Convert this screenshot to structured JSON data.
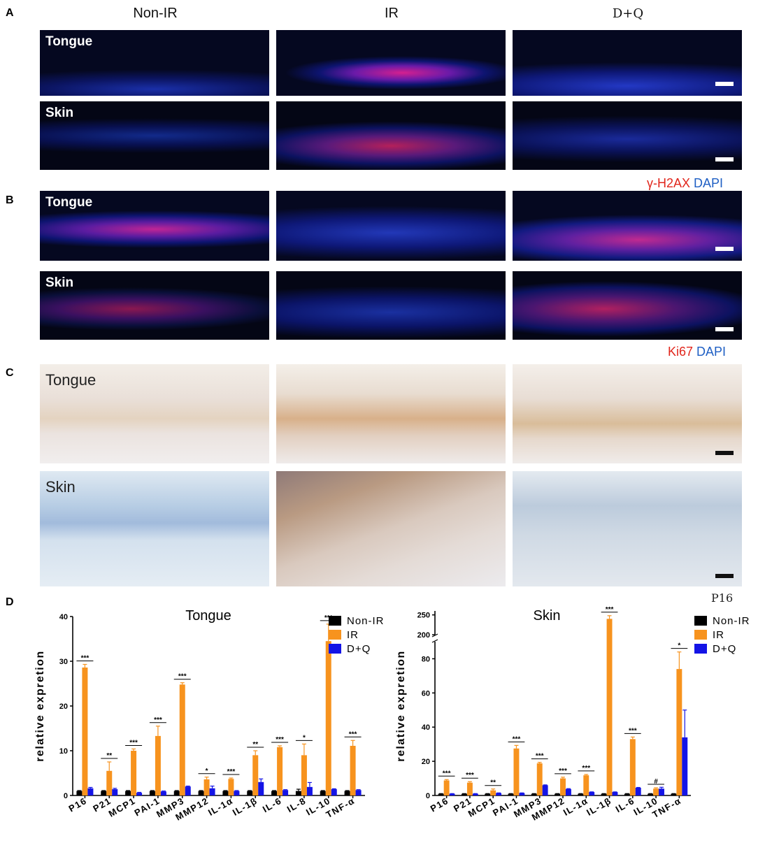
{
  "panels": {
    "a": "A",
    "b": "B",
    "c": "C",
    "d": "D"
  },
  "columns": [
    "Non-IR",
    "IR",
    "D+Q"
  ],
  "tissues": {
    "tongue": "Tongue",
    "skin": "Skin"
  },
  "legend_a": {
    "stain": "γ-H2AX",
    "dapi": "DAPI"
  },
  "legend_b": {
    "stain": "Ki67",
    "dapi": "DAPI"
  },
  "panel_c_corner_label": "P16",
  "colors": {
    "non_ir": "#000000",
    "ir": "#f7931e",
    "dq": "#1414e6",
    "fluor_bg": "#050820",
    "red_stain": "#e1261c",
    "dapi_blue": "#1f5fc4"
  },
  "chart_data": [
    {
      "type": "bar",
      "title": "Tongue",
      "ylabel": "relative expretion",
      "ylim": [
        0,
        40
      ],
      "yticks": [
        0,
        10,
        20,
        30,
        40
      ],
      "categories": [
        "P16",
        "P21",
        "MCP1",
        "PAI-1",
        "MMP3",
        "MMP12",
        "IL-1α",
        "IL-1β",
        "IL-6",
        "IL-8",
        "IL-10",
        "TNF-α"
      ],
      "series": [
        {
          "name": "Non-IR",
          "values": [
            1,
            1,
            1,
            1,
            1,
            1,
            1,
            1,
            1,
            1,
            1,
            1
          ],
          "errors": [
            0.1,
            0.1,
            0.1,
            0.1,
            0.1,
            0.1,
            0.1,
            0.1,
            0.1,
            0.4,
            0.1,
            0.1
          ]
        },
        {
          "name": "IR",
          "values": [
            28.6,
            5.5,
            10.0,
            13.3,
            24.8,
            3.6,
            3.7,
            9.0,
            10.8,
            9.0,
            34.5,
            11.1
          ],
          "errors": [
            0.7,
            2.0,
            0.4,
            2.2,
            0.4,
            0.5,
            0.2,
            1.0,
            0.3,
            2.5,
            3.8,
            1.2
          ]
        },
        {
          "name": "D+Q",
          "values": [
            1.6,
            1.4,
            0.6,
            0.9,
            2.0,
            1.6,
            1.0,
            3.0,
            1.2,
            1.9,
            1.4,
            1.2
          ],
          "errors": [
            0.2,
            0.2,
            0.1,
            0.1,
            0.1,
            0.5,
            0.1,
            0.7,
            0.1,
            1.0,
            0.1,
            0.1
          ]
        }
      ],
      "significance": [
        "***",
        "**",
        "***",
        "***",
        "***",
        "*",
        "***",
        "**",
        "***",
        "*",
        "***",
        "***"
      ],
      "legend": [
        "Non-IR",
        "IR",
        "D+Q"
      ],
      "legend_position": "top-right"
    },
    {
      "type": "bar",
      "title": "Skin",
      "ylabel": "relative expretion",
      "broken_axis": true,
      "ylim_lower": [
        0,
        90
      ],
      "ylim_upper": [
        200,
        260
      ],
      "yticks_lower": [
        0,
        20,
        40,
        60,
        80
      ],
      "yticks_upper": [
        200,
        250
      ],
      "categories": [
        "P16",
        "P21",
        "MCP1",
        "PAI-1",
        "MMP3",
        "MMP12",
        "IL-1α",
        "IL-1β",
        "IL-6",
        "IL-10",
        "TNF-α"
      ],
      "series": [
        {
          "name": "Non-IR",
          "values": [
            1,
            1,
            1,
            1,
            1,
            1,
            1,
            1,
            1,
            1,
            1
          ],
          "errors": [
            0.1,
            0.1,
            0.1,
            0.1,
            0.1,
            0.1,
            0.1,
            0.1,
            0.1,
            0.1,
            0.1
          ]
        },
        {
          "name": "IR",
          "values": [
            8.8,
            7.5,
            3.0,
            27.5,
            18.8,
            10.0,
            11.8,
            240,
            33.0,
            4.0,
            74.0
          ],
          "errors": [
            0.5,
            0.6,
            0.8,
            1.8,
            0.6,
            0.7,
            0.5,
            8.0,
            1.2,
            0.5,
            10.0
          ]
        },
        {
          "name": "D+Q",
          "values": [
            1.0,
            1.0,
            1.4,
            1.4,
            6.0,
            3.8,
            2.0,
            2.0,
            4.5,
            4.0,
            34.0
          ],
          "errors": [
            0.1,
            0.1,
            0.1,
            0.1,
            0.2,
            0.2,
            0.1,
            0.1,
            0.2,
            0.8,
            16.0
          ]
        }
      ],
      "significance": [
        "***",
        "***",
        "**",
        "***",
        "***",
        "***",
        "***",
        "***",
        "***",
        "#",
        "*"
      ],
      "legend": [
        "Non-IR",
        "IR",
        "D+Q"
      ],
      "legend_position": "top-right"
    }
  ]
}
